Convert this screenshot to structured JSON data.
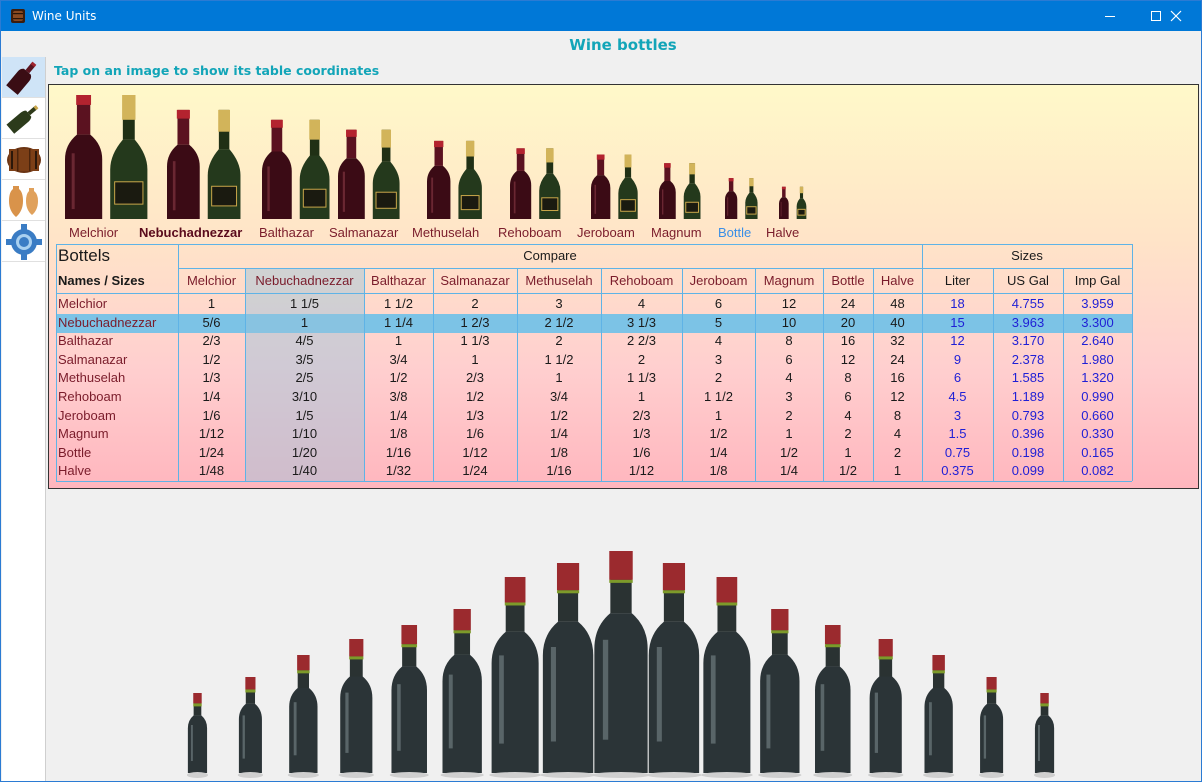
{
  "window": {
    "title": "Wine Units"
  },
  "sidebar": {
    "items": [
      {
        "name": "wine-bottle",
        "icon": "wine-bottle-icon"
      },
      {
        "name": "pouring-bottle",
        "icon": "pouring-bottle-icon"
      },
      {
        "name": "barrel",
        "icon": "barrel-icon"
      },
      {
        "name": "amphorae",
        "icon": "amphora-icon"
      },
      {
        "name": "settings",
        "icon": "gear-icon"
      }
    ]
  },
  "page": {
    "title": "Wine bottles",
    "instruction": "Tap on an image to show its table coordinates"
  },
  "bottles": [
    {
      "label": "Melchior"
    },
    {
      "label": "Nebuchadnezzar"
    },
    {
      "label": "Balthazar"
    },
    {
      "label": "Salmanazar"
    },
    {
      "label": "Methuselah"
    },
    {
      "label": "Rehoboam"
    },
    {
      "label": "Jeroboam"
    },
    {
      "label": "Magnum"
    },
    {
      "label": "Bottle"
    },
    {
      "label": "Halve"
    }
  ],
  "table": {
    "corner_title": "Bottels",
    "corner_subtitle": "Names / Sizes",
    "compare_header": "Compare",
    "sizes_header": "Sizes",
    "columns": [
      "Melchior",
      "Nebuchadnezzar",
      "Balthazar",
      "Salmanazar",
      "Methuselah",
      "Rehoboam",
      "Jeroboam",
      "Magnum",
      "Bottle",
      "Halve"
    ],
    "size_columns": [
      "Liter",
      "US Gal",
      "Imp Gal"
    ],
    "rows": [
      {
        "name": "Melchior",
        "values": [
          "1",
          "1 1/5",
          "1 1/2",
          "2",
          "3",
          "4",
          "6",
          "12",
          "24",
          "48"
        ],
        "sizes": [
          "18",
          "4.755",
          "3.959"
        ]
      },
      {
        "name": "Nebuchadnezzar",
        "values": [
          "5/6",
          "1",
          "1 1/4",
          "1 2/3",
          "2 1/2",
          "3 1/3",
          "5",
          "10",
          "20",
          "40"
        ],
        "sizes": [
          "15",
          "3.963",
          "3.300"
        ]
      },
      {
        "name": "Balthazar",
        "values": [
          "2/3",
          "4/5",
          "1",
          "1 1/3",
          "2",
          "2 2/3",
          "4",
          "8",
          "16",
          "32"
        ],
        "sizes": [
          "12",
          "3.170",
          "2.640"
        ]
      },
      {
        "name": "Salmanazar",
        "values": [
          "1/2",
          "3/5",
          "3/4",
          "1",
          "1 1/2",
          "2",
          "3",
          "6",
          "12",
          "24"
        ],
        "sizes": [
          "9",
          "2.378",
          "1.980"
        ]
      },
      {
        "name": "Methuselah",
        "values": [
          "1/3",
          "2/5",
          "1/2",
          "2/3",
          "1",
          "1 1/3",
          "2",
          "4",
          "8",
          "16"
        ],
        "sizes": [
          "6",
          "1.585",
          "1.320"
        ]
      },
      {
        "name": "Rehoboam",
        "values": [
          "1/4",
          "3/10",
          "3/8",
          "1/2",
          "3/4",
          "1",
          "1 1/2",
          "3",
          "6",
          "12"
        ],
        "sizes": [
          "4.5",
          "1.189",
          "0.990"
        ]
      },
      {
        "name": "Jeroboam",
        "values": [
          "1/6",
          "1/5",
          "1/4",
          "1/3",
          "1/2",
          "2/3",
          "1",
          "2",
          "4",
          "8"
        ],
        "sizes": [
          "3",
          "0.793",
          "0.660"
        ]
      },
      {
        "name": "Magnum",
        "values": [
          "1/12",
          "1/10",
          "1/8",
          "1/6",
          "1/4",
          "1/3",
          "1/2",
          "1",
          "2",
          "4"
        ],
        "sizes": [
          "1.5",
          "0.396",
          "0.330"
        ]
      },
      {
        "name": "Bottle",
        "values": [
          "1/24",
          "1/20",
          "1/16",
          "1/12",
          "1/8",
          "1/6",
          "1/4",
          "1/2",
          "1",
          "2"
        ],
        "sizes": [
          "0.75",
          "0.198",
          "0.165"
        ]
      },
      {
        "name": "Halve",
        "values": [
          "1/48",
          "1/40",
          "1/32",
          "1/24",
          "1/16",
          "1/12",
          "1/8",
          "1/4",
          "1/2",
          "1"
        ],
        "sizes": [
          "0.375",
          "0.099",
          "0.082"
        ]
      }
    ]
  },
  "selection": {
    "row": "Nebuchadnezzar",
    "column": "Nebuchadnezzar"
  },
  "colors": {
    "accent": "#12a5b8",
    "title_bar": "#0078d7",
    "row_label": "#7a1c2b",
    "size_value": "#1f1fd6",
    "selection": "#7cc3e6",
    "selected_bottle_label": "#3a8ee6"
  }
}
